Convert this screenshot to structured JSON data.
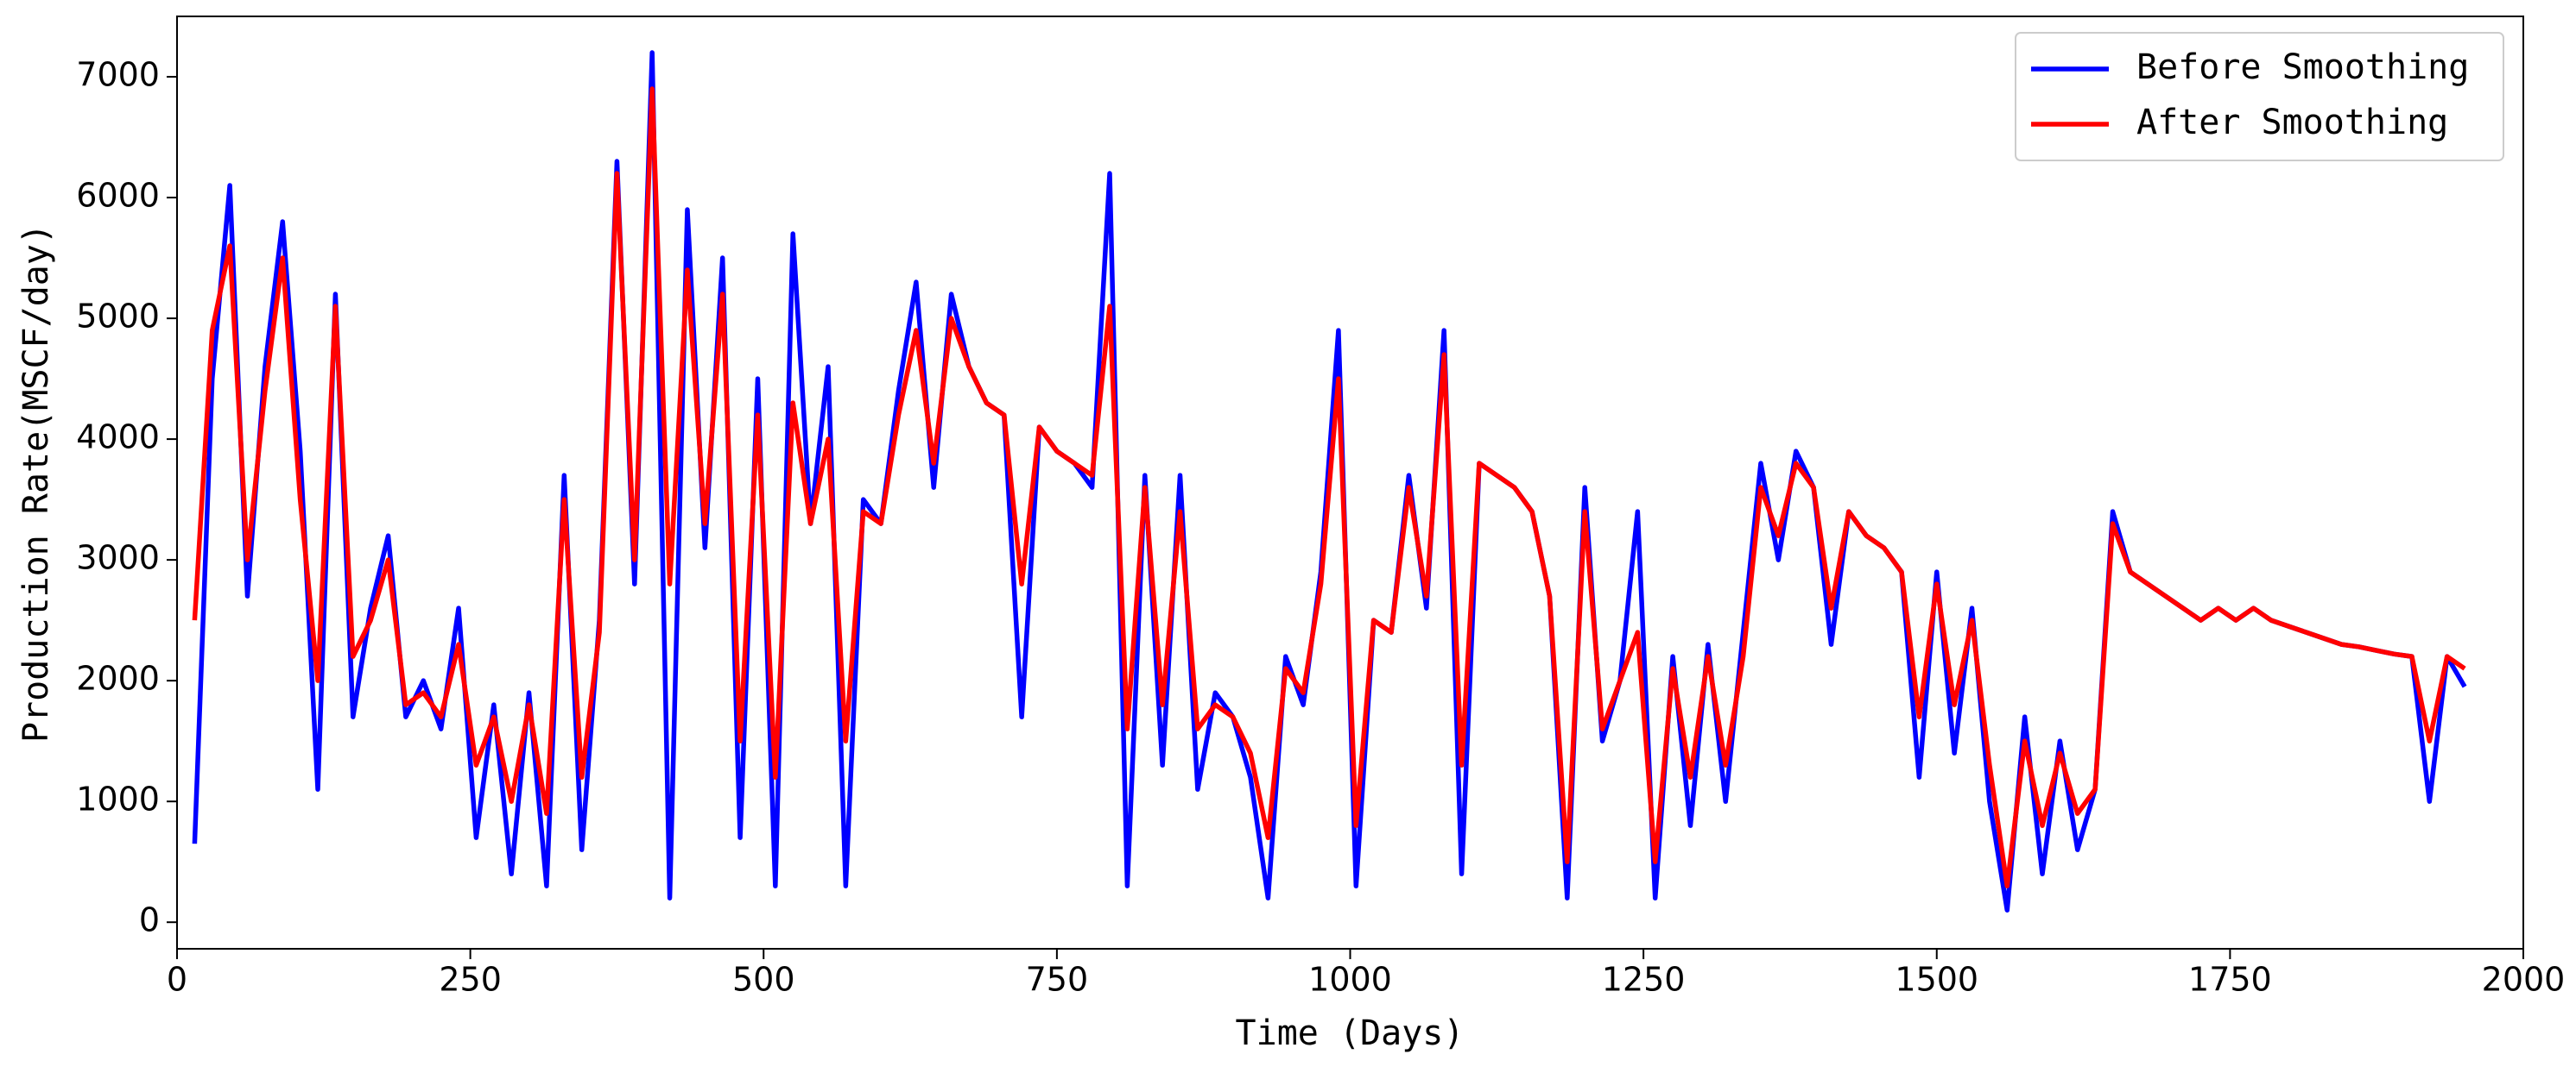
{
  "chart_data": {
    "type": "line",
    "xlabel": "Time (Days)",
    "ylabel": "Production Rate(MSCF/day)",
    "x": [
      15,
      30,
      45,
      60,
      75,
      90,
      105,
      120,
      135,
      150,
      165,
      180,
      195,
      210,
      225,
      240,
      255,
      270,
      285,
      300,
      315,
      330,
      345,
      360,
      375,
      390,
      405,
      420,
      435,
      450,
      465,
      480,
      495,
      510,
      525,
      540,
      555,
      570,
      585,
      600,
      615,
      630,
      645,
      660,
      675,
      690,
      705,
      720,
      735,
      750,
      765,
      780,
      795,
      810,
      825,
      840,
      855,
      870,
      885,
      900,
      915,
      930,
      945,
      960,
      975,
      990,
      1005,
      1020,
      1035,
      1050,
      1065,
      1080,
      1095,
      1110,
      1125,
      1140,
      1155,
      1170,
      1185,
      1200,
      1215,
      1230,
      1245,
      1260,
      1275,
      1290,
      1305,
      1320,
      1335,
      1350,
      1365,
      1380,
      1395,
      1410,
      1425,
      1440,
      1455,
      1470,
      1485,
      1500,
      1515,
      1530,
      1545,
      1560,
      1575,
      1590,
      1605,
      1620,
      1635,
      1650,
      1665,
      1680,
      1695,
      1710,
      1725,
      1740,
      1755,
      1770,
      1785,
      1800,
      1815,
      1830,
      1845,
      1860,
      1875,
      1890,
      1905,
      1920,
      1935,
      1950
    ],
    "series": [
      {
        "name": "Before Smoothing",
        "color": "#0000ff",
        "values": [
          650,
          4500,
          6100,
          2700,
          4600,
          5800,
          3900,
          1100,
          5200,
          1700,
          2600,
          3200,
          1700,
          2000,
          1600,
          2600,
          700,
          1800,
          400,
          1900,
          300,
          3700,
          600,
          2500,
          6300,
          2800,
          7200,
          200,
          5900,
          3100,
          5500,
          700,
          4500,
          300,
          5700,
          3300,
          4600,
          300,
          3500,
          3300,
          4400,
          5300,
          3600,
          5200,
          4600,
          4300,
          4200,
          1700,
          4100,
          3900,
          3800,
          3600,
          6200,
          300,
          3700,
          1300,
          3700,
          1100,
          1900,
          1700,
          1200,
          200,
          2200,
          1800,
          2900,
          4900,
          300,
          2500,
          2400,
          3700,
          2600,
          4900,
          400,
          3800,
          3700,
          3600,
          3400,
          2700,
          200,
          3600,
          1500,
          2000,
          3400,
          200,
          2200,
          800,
          2300,
          1000,
          2400,
          3800,
          3000,
          3900,
          3600,
          2300,
          3400,
          3200,
          3100,
          2900,
          1200,
          2900,
          1400,
          2600,
          1000,
          100,
          1700,
          400,
          1500,
          600,
          1100,
          3400,
          2900,
          2800,
          2700,
          2600,
          2500,
          2600,
          2500,
          2600,
          2500,
          2450,
          2400,
          2350,
          2300,
          2280,
          2250,
          2220,
          2200,
          1000,
          2200,
          1950
        ]
      },
      {
        "name": "After Smoothing",
        "color": "#ff0000",
        "values": [
          2500,
          4900,
          5600,
          3000,
          4400,
          5500,
          3500,
          2000,
          5100,
          2200,
          2500,
          3000,
          1800,
          1900,
          1700,
          2300,
          1300,
          1700,
          1000,
          1800,
          900,
          3500,
          1200,
          2400,
          6200,
          3000,
          6900,
          2800,
          5400,
          3300,
          5200,
          1500,
          4200,
          1200,
          4300,
          3300,
          4000,
          1500,
          3400,
          3300,
          4200,
          4900,
          3800,
          5000,
          4600,
          4300,
          4200,
          2800,
          4100,
          3900,
          3800,
          3700,
          5100,
          1600,
          3600,
          1800,
          3400,
          1600,
          1800,
          1700,
          1400,
          700,
          2100,
          1900,
          2800,
          4500,
          800,
          2500,
          2400,
          3600,
          2700,
          4700,
          1300,
          3800,
          3700,
          3600,
          3400,
          2700,
          500,
          3400,
          1600,
          2000,
          2400,
          500,
          2100,
          1200,
          2200,
          1300,
          2200,
          3600,
          3200,
          3800,
          3600,
          2600,
          3400,
          3200,
          3100,
          2900,
          1700,
          2800,
          1800,
          2500,
          1300,
          300,
          1500,
          800,
          1400,
          900,
          1100,
          3300,
          2900,
          2800,
          2700,
          2600,
          2500,
          2600,
          2500,
          2600,
          2500,
          2450,
          2400,
          2350,
          2300,
          2280,
          2250,
          2220,
          2200,
          1500,
          2200,
          2100
        ]
      }
    ],
    "xlim": [
      0,
      2000
    ],
    "xticks": [
      0,
      250,
      500,
      750,
      1000,
      1250,
      1500,
      1750,
      2000
    ],
    "ylim": [
      -220,
      7500
    ],
    "yticks": [
      0,
      1000,
      2000,
      3000,
      4000,
      5000,
      6000,
      7000
    ],
    "grid": false,
    "legend": "upper right"
  }
}
